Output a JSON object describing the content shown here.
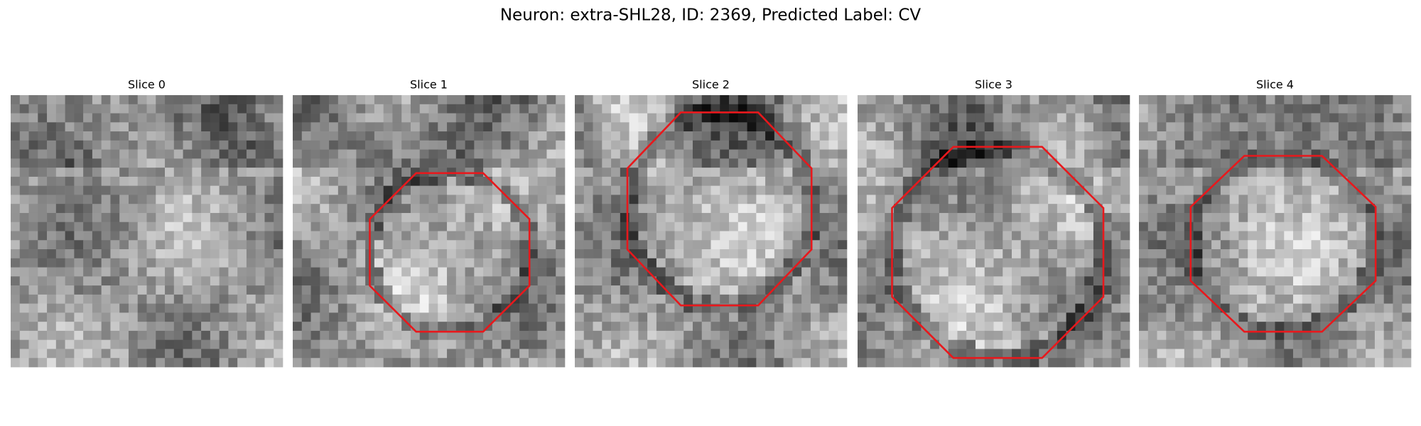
{
  "title": "Neuron: extra-SHL28, ID: 2369, Predicted Label: CV",
  "panels": [
    {
      "title": "Slice 0"
    },
    {
      "title": "Slice 1"
    },
    {
      "title": "Slice 2"
    },
    {
      "title": "Slice 3"
    },
    {
      "title": "Slice 4"
    }
  ]
}
